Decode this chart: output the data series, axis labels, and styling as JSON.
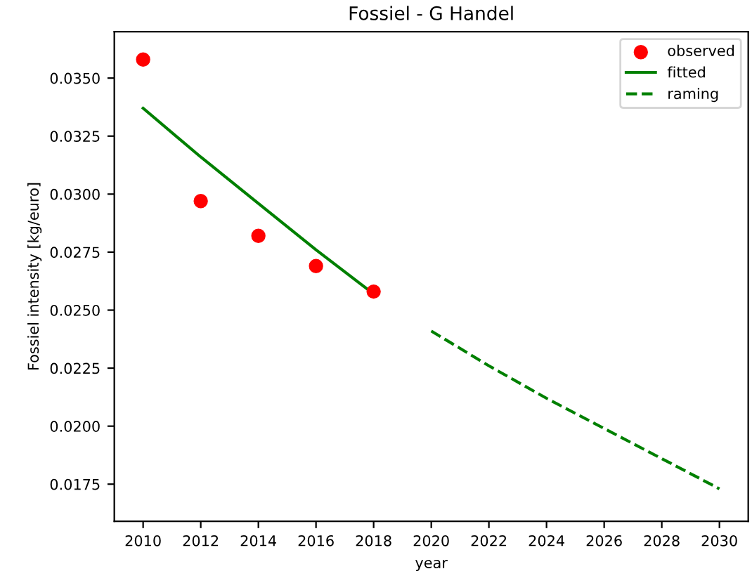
{
  "chart_data": {
    "type": "line",
    "title": "Fossiel - G Handel",
    "xlabel": "year",
    "ylabel": "Fossiel intensity [kg/euro]",
    "series": [
      {
        "name": "observed",
        "type": "scatter",
        "marker": "circle",
        "color": "#ff0000",
        "x": [
          2010,
          2012,
          2014,
          2016,
          2018
        ],
        "values": [
          0.0358,
          0.0297,
          0.0282,
          0.0269,
          0.0258
        ]
      },
      {
        "name": "fitted",
        "line_style": "solid",
        "color": "#008000",
        "x": [
          2010,
          2012,
          2014,
          2016,
          2018
        ],
        "values": [
          0.0337,
          0.0316,
          0.0296,
          0.0276,
          0.0257
        ]
      },
      {
        "name": "raming",
        "line_style": "dashed",
        "color": "#008000",
        "x": [
          2020,
          2022,
          2024,
          2026,
          2028,
          2030
        ],
        "values": [
          0.0241,
          0.0226,
          0.0212,
          0.0199,
          0.0186,
          0.0173
        ]
      }
    ],
    "xlim": [
      2009,
      2031
    ],
    "xticks": [
      2010,
      2012,
      2014,
      2016,
      2018,
      2020,
      2022,
      2024,
      2026,
      2028,
      2030
    ],
    "ylim": [
      0.0159,
      0.037
    ],
    "yticks": [
      {
        "value": 0.0175,
        "label": "0.0175"
      },
      {
        "value": 0.02,
        "label": "0.0200"
      },
      {
        "value": 0.0225,
        "label": "0.0225"
      },
      {
        "value": 0.025,
        "label": "0.0250"
      },
      {
        "value": 0.0275,
        "label": "0.0275"
      },
      {
        "value": 0.03,
        "label": "0.0300"
      },
      {
        "value": 0.0325,
        "label": "0.0325"
      },
      {
        "value": 0.035,
        "label": "0.0350"
      }
    ],
    "legend": "top right",
    "grid": false
  }
}
